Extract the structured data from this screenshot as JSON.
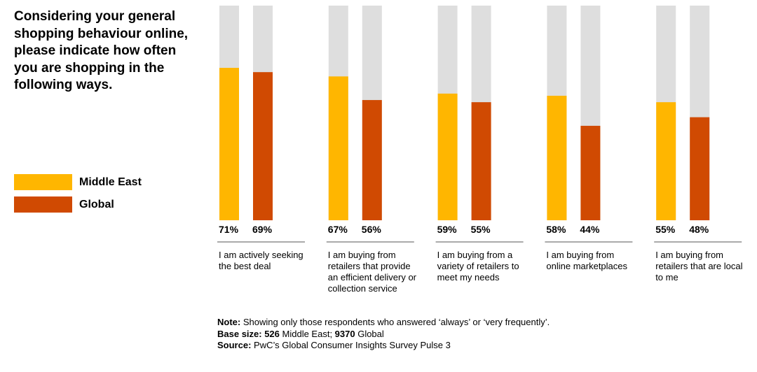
{
  "chart_data": {
    "type": "bar",
    "title": "Considering your general shopping behaviour online, please indicate how often you are shopping in the following ways.",
    "categories": [
      "I am actively seeking the best deal",
      "I am buying from retailers that provide an efficient delivery or collection service",
      "I am buying from a variety of retailers to meet my needs",
      "I am buying from online marketplaces",
      "I am buying from retailers that are local to me"
    ],
    "series": [
      {
        "name": "Middle East",
        "color": "#FFB600",
        "values": [
          71,
          67,
          59,
          58,
          55
        ],
        "value_labels": [
          "71%",
          "67%",
          "59%",
          "58%",
          "55%"
        ]
      },
      {
        "name": "Global",
        "color": "#D04A02",
        "values": [
          69,
          56,
          55,
          44,
          48
        ],
        "value_labels": [
          "69%",
          "56%",
          "55%",
          "44%",
          "48%"
        ]
      }
    ],
    "ylim": [
      0,
      100
    ],
    "track_color": "#DEDEDE",
    "notes": [
      [
        {
          "text": "Note:",
          "bold": true
        },
        {
          "text": " Showing only those respondents who answered ‘always’ or ‘very frequently’.",
          "bold": false
        }
      ],
      [
        {
          "text": "Base size: 526",
          "bold": true
        },
        {
          "text": " Middle East; ",
          "bold": false
        },
        {
          "text": "9370",
          "bold": true
        },
        {
          "text": " Global",
          "bold": false
        }
      ],
      [
        {
          "text": "Source:",
          "bold": true
        },
        {
          "text": " PwC’s Global Consumer Insights Survey Pulse 3",
          "bold": false
        }
      ]
    ]
  }
}
